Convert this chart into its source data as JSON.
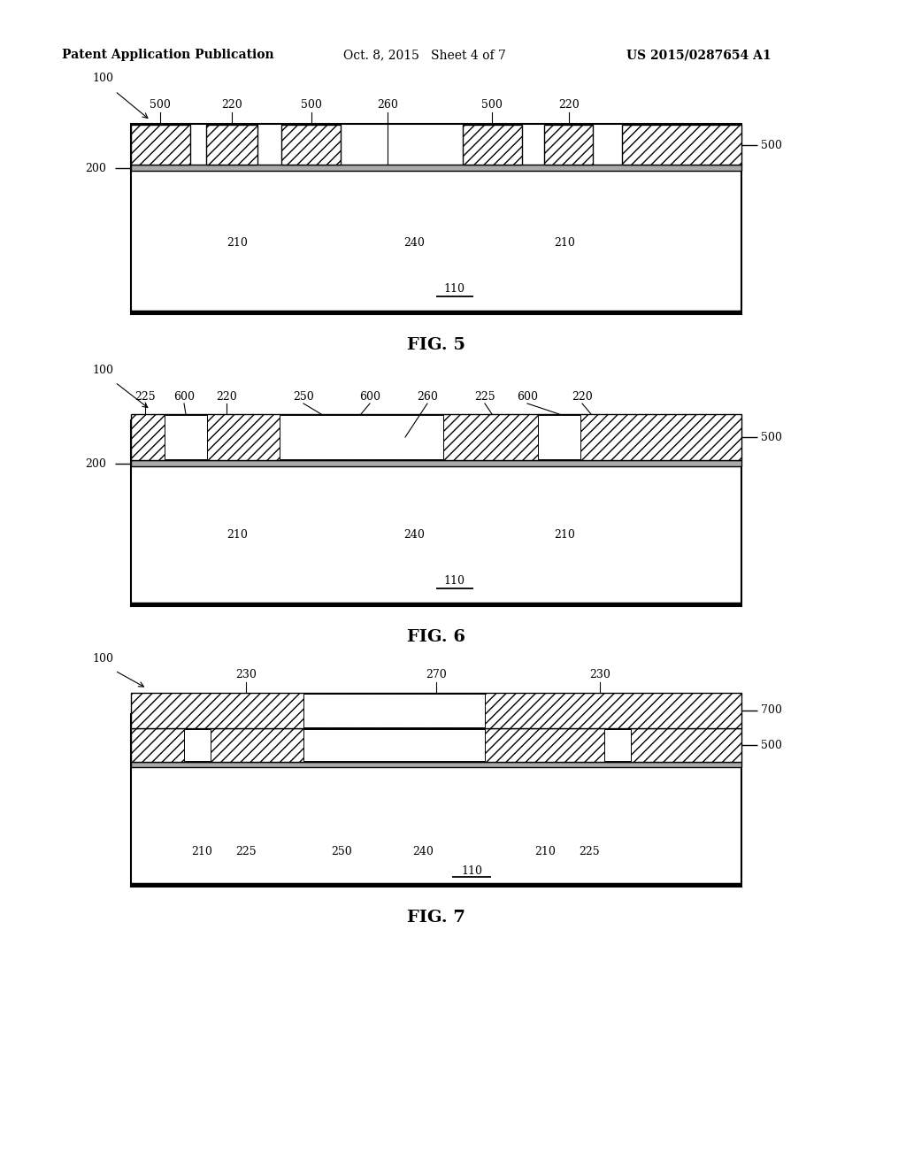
{
  "bg_color": "#ffffff",
  "header_left": "Patent Application Publication",
  "header_mid": "Oct. 8, 2015   Sheet 4 of 7",
  "header_right": "US 2015/0287654 A1",
  "fig5_caption": "FIG. 5",
  "fig6_caption": "FIG. 6",
  "fig7_caption": "FIG. 7"
}
